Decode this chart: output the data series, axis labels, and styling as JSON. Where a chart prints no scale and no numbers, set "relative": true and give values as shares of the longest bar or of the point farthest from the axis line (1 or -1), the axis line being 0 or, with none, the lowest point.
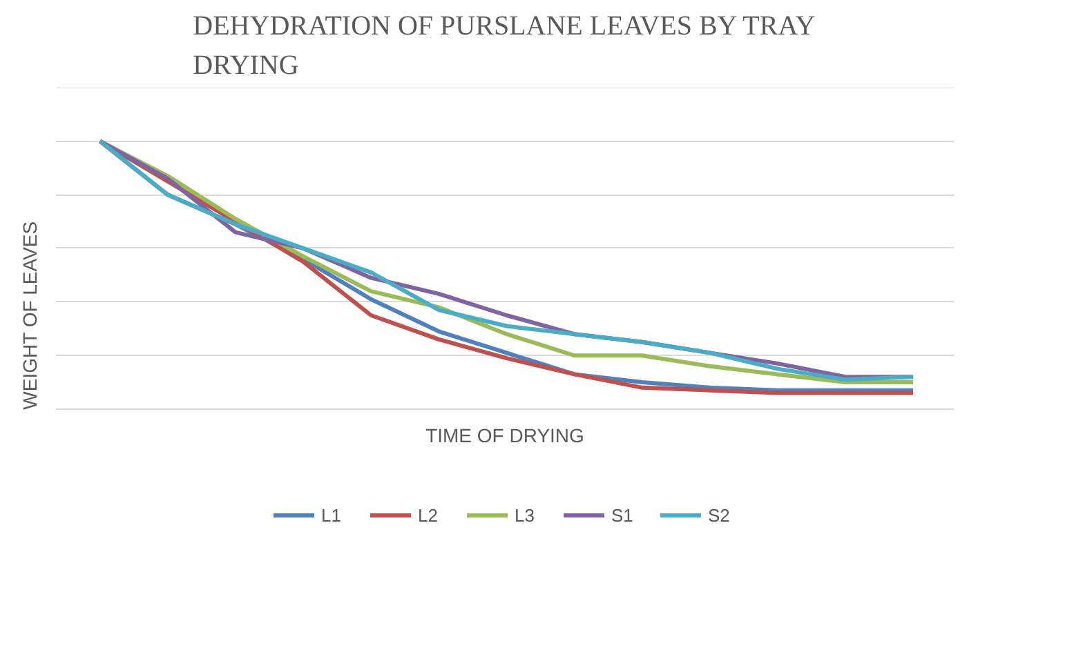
{
  "chart_data": {
    "type": "line",
    "title": "DEHYDRATION OF PURSLANE LEAVES BY TRAY DRYING",
    "xlabel": "TIME OF DRYING",
    "ylabel": "WEIGHT OF LEAVES",
    "relative": true,
    "grid": "y",
    "legend": "bottom",
    "marker": "none",
    "line_style": "solid",
    "categories": [
      null,
      null,
      null,
      null,
      null,
      null,
      null,
      null,
      null,
      null,
      null,
      null,
      null
    ],
    "series": [
      {
        "name": "L1",
        "color": "#4f81bd",
        "values": [
          1,
          0.8,
          0.69,
          0.56,
          0.41,
          0.29,
          0.21,
          0.13,
          0.1,
          0.08,
          0.07,
          0.07,
          0.07
        ]
      },
      {
        "name": "L2",
        "color": "#c0504d",
        "values": [
          1,
          0.85,
          0.7,
          0.55,
          0.35,
          0.26,
          0.19,
          0.13,
          0.08,
          0.07,
          0.06,
          0.06,
          0.06
        ]
      },
      {
        "name": "L3",
        "color": "#9bbb59",
        "values": [
          1,
          0.87,
          0.71,
          0.57,
          0.44,
          0.38,
          0.28,
          0.2,
          0.2,
          0.16,
          0.13,
          0.1,
          0.1
        ]
      },
      {
        "name": "S1",
        "color": "#8064a2",
        "values": [
          1,
          0.86,
          0.66,
          0.6,
          0.49,
          0.43,
          0.35,
          0.28,
          0.25,
          0.21,
          0.17,
          0.12,
          0.12
        ]
      },
      {
        "name": "S2",
        "color": "#4bacc6",
        "values": [
          1,
          0.8,
          0.69,
          0.6,
          0.51,
          0.37,
          0.31,
          0.28,
          0.25,
          0.21,
          0.15,
          0.11,
          0.12
        ]
      }
    ]
  }
}
